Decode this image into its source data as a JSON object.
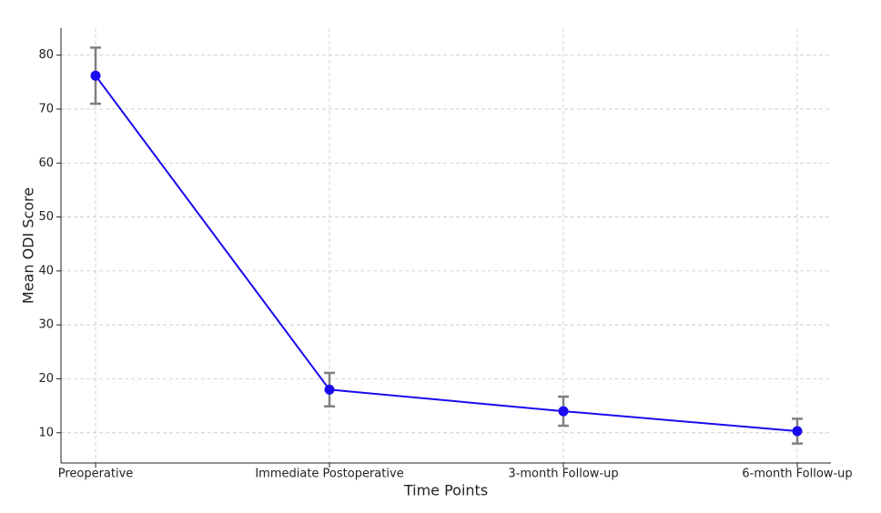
{
  "chart_data": {
    "type": "line",
    "xlabel": "Time Points",
    "ylabel": "Mean ODI Score",
    "categories": [
      "Preoperative",
      "Immediate Postoperative",
      "3-month Follow-up",
      "6-month Follow-up"
    ],
    "series": [
      {
        "color": "#1a0aef",
        "values": [
          76.2,
          18.0,
          14.0,
          10.3
        ],
        "errors": [
          5.2,
          3.1,
          2.7,
          2.3
        ],
        "error_color": "#808080"
      }
    ],
    "ylim": [
      4.4,
      85
    ],
    "yticks": [
      10,
      20,
      30,
      40,
      50,
      60,
      70,
      80
    ],
    "grid": true
  }
}
